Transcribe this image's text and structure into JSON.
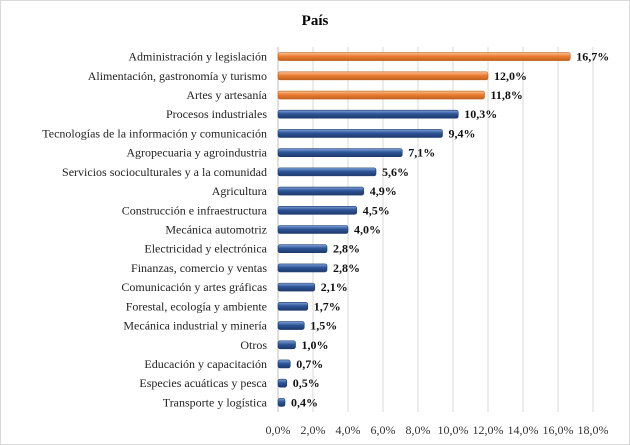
{
  "chart_data": {
    "type": "bar",
    "orientation": "horizontal",
    "title": "País",
    "categories": [
      "Administración y legislación",
      "Alimentación, gastronomía y turismo",
      "Artes y artesanía",
      "Procesos industriales",
      "Tecnologías de la información y comunicación",
      "Agropecuaria y agroindustria",
      "Servicios socioculturales y a la comunidad",
      "Agricultura",
      "Construcción e infraestructura",
      "Mecánica automotriz",
      "Electricidad y electrónica",
      "Finanzas, comercio y ventas",
      "Comunicación y artes gráficas",
      "Forestal, ecología y ambiente",
      "Mecánica industrial y minería",
      "Otros",
      "Educación y capacitación",
      "Especies acuáticas y pesca",
      "Transporte y logística"
    ],
    "values": [
      16.7,
      12.0,
      11.8,
      10.3,
      9.4,
      7.1,
      5.6,
      4.9,
      4.5,
      4.0,
      2.8,
      2.8,
      2.1,
      1.7,
      1.5,
      1.0,
      0.7,
      0.5,
      0.4
    ],
    "value_labels": [
      "16,7%",
      "12,0%",
      "11,8%",
      "10,3%",
      "9,4%",
      "7,1%",
      "5,6%",
      "4,9%",
      "4,5%",
      "4,0%",
      "2,8%",
      "2,8%",
      "2,1%",
      "1,7%",
      "1,5%",
      "1,0%",
      "0,7%",
      "0,5%",
      "0,4%"
    ],
    "highlighted": [
      true,
      true,
      true,
      false,
      false,
      false,
      false,
      false,
      false,
      false,
      false,
      false,
      false,
      false,
      false,
      false,
      false,
      false,
      false
    ],
    "xlim": [
      0,
      18
    ],
    "xticks": [
      0,
      2,
      4,
      6,
      8,
      10,
      12,
      14,
      16,
      18
    ],
    "xtick_labels": [
      "0,0%",
      "2,0%",
      "4,0%",
      "6,0%",
      "8,0%",
      "10,0%",
      "12,0%",
      "14,0%",
      "16,0%",
      "18,0%"
    ],
    "grid": "vertical",
    "legend": "none",
    "colors": {
      "highlight": "#ED7D31",
      "highlight_dark": "#C0621F",
      "base": "#2E5597",
      "base_dark": "#1D3A6E",
      "grid": "#d9d9d9"
    }
  }
}
